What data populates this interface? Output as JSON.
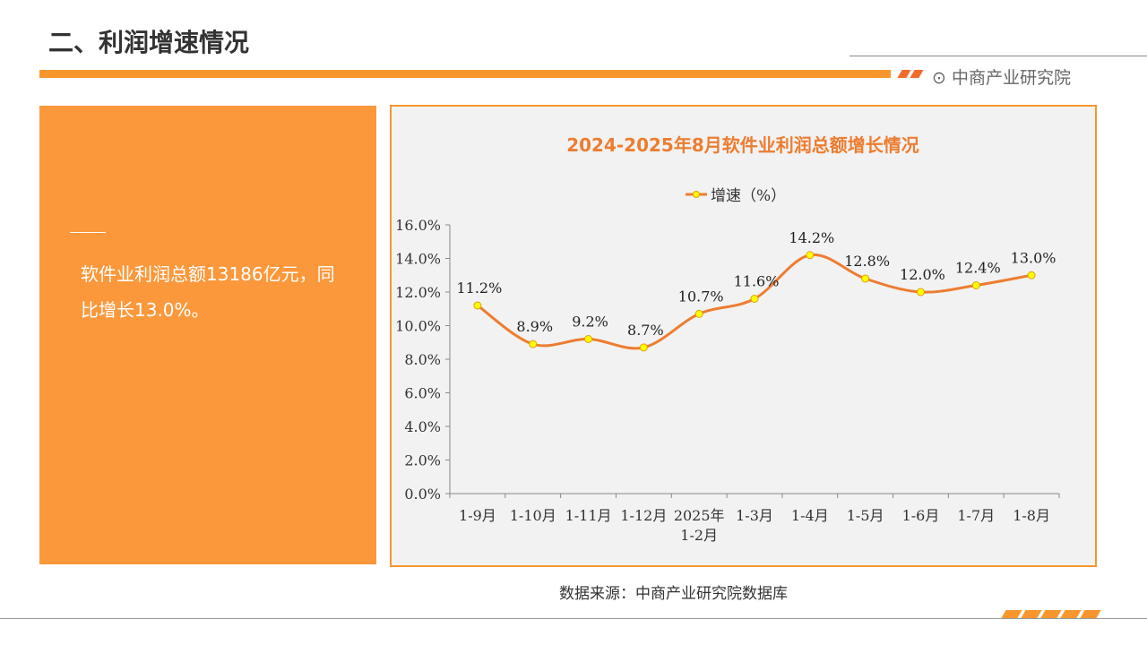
{
  "header": {
    "title": "二、利润增速情况",
    "brand": "中商产业研究院"
  },
  "summary": {
    "text": "软件业利润总额13186亿元，同比增长13.0%。"
  },
  "source": "数据来源：中商产业研究院数据库",
  "colors": {
    "accent": "#f7962c",
    "line": "#ed7d31",
    "marker": "#ffff00"
  },
  "chart_data": {
    "type": "line",
    "title": "2024-2025年8月软件业利润总额增长情况",
    "legend": "增速（%）",
    "legend_position": "top",
    "categories": [
      "1-9月",
      "1-10月",
      "1-11月",
      "1-12月",
      "2025年 1-2月",
      "1-3月",
      "1-4月",
      "1-5月",
      "1-6月",
      "1-7月",
      "1-8月"
    ],
    "values": [
      11.2,
      8.9,
      9.2,
      8.7,
      10.7,
      11.6,
      14.2,
      12.8,
      12.0,
      12.4,
      13.0
    ],
    "data_labels": [
      "11.2%",
      "8.9%",
      "9.2%",
      "8.7%",
      "10.7%",
      "11.6%",
      "14.2%",
      "12.8%",
      "12.0%",
      "12.4%",
      "13.0%"
    ],
    "yticks": [
      "0.0%",
      "2.0%",
      "4.0%",
      "6.0%",
      "8.0%",
      "10.0%",
      "12.0%",
      "14.0%",
      "16.0%"
    ],
    "ylim": [
      0,
      16
    ],
    "grid": false
  }
}
